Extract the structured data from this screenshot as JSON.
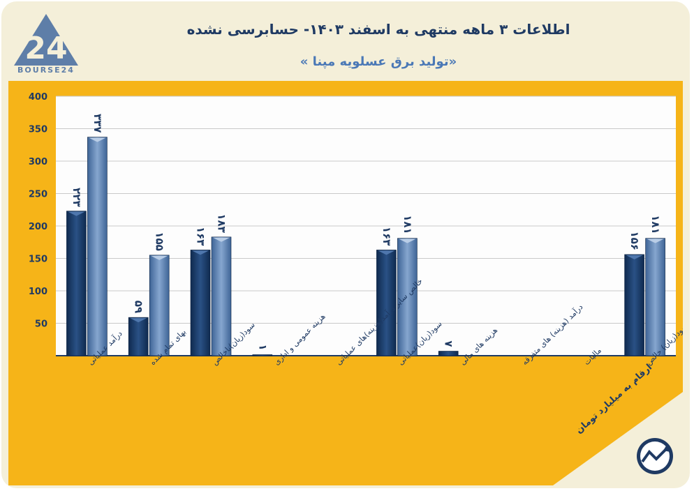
{
  "brand": {
    "logo_numeral": "24",
    "logo_text": "BOURSE24"
  },
  "header": {
    "title": "اطلاعات ۳ ماهه منتهی به اسفند ۱۴۰۳- حسابرسی نشده",
    "subtitle": "«تولید برق عسلویه مپنا »"
  },
  "footnote": "ارقام به میلیارد تومان",
  "colors": {
    "background": "#f4efd9",
    "panel": "#f6b418",
    "plot": "#fdfdfd",
    "series_dark": "#1b3d6b",
    "series_light": "#5a7fae",
    "text_dark": "#1f3a63"
  },
  "chart_data": {
    "type": "bar",
    "ylim": [
      0,
      400
    ],
    "yticks": [
      "400",
      "350",
      "300",
      "250",
      "200",
      "150",
      "100",
      "50"
    ],
    "ytick_values": [
      400,
      350,
      300,
      250,
      200,
      150,
      100,
      50
    ],
    "categories": [
      "درآمد عملیاتی",
      "بهای تمام شده",
      "سود(زیان)ناخالص",
      "هزینه عمومی و اداری",
      "خالص سایر درآمد(هزینه)های عملیاتی",
      "سود(زیان)عملیاتی",
      "هزینه های مالی",
      "درآمد (هزینه) های متفرقه",
      "مالیات",
      "سود(زیان) خالص"
    ],
    "series": [
      {
        "name": "dark",
        "values": [
          223,
          59,
          163,
          1,
          null,
          163,
          7,
          null,
          null,
          156
        ],
        "labels": [
          "۲۲۳",
          "۵۹",
          "۱۶۳",
          "۱",
          "",
          "۱۶۳",
          "۷",
          "",
          "",
          "۱۵۶"
        ]
      },
      {
        "name": "light",
        "values": [
          337,
          155,
          183,
          null,
          null,
          181,
          null,
          null,
          null,
          181
        ],
        "labels": [
          "۳۳۷",
          "۱۵۵",
          "۱۸۳",
          "",
          "",
          "۱۸۱",
          "",
          "",
          "",
          "۱۸۱"
        ]
      }
    ]
  }
}
